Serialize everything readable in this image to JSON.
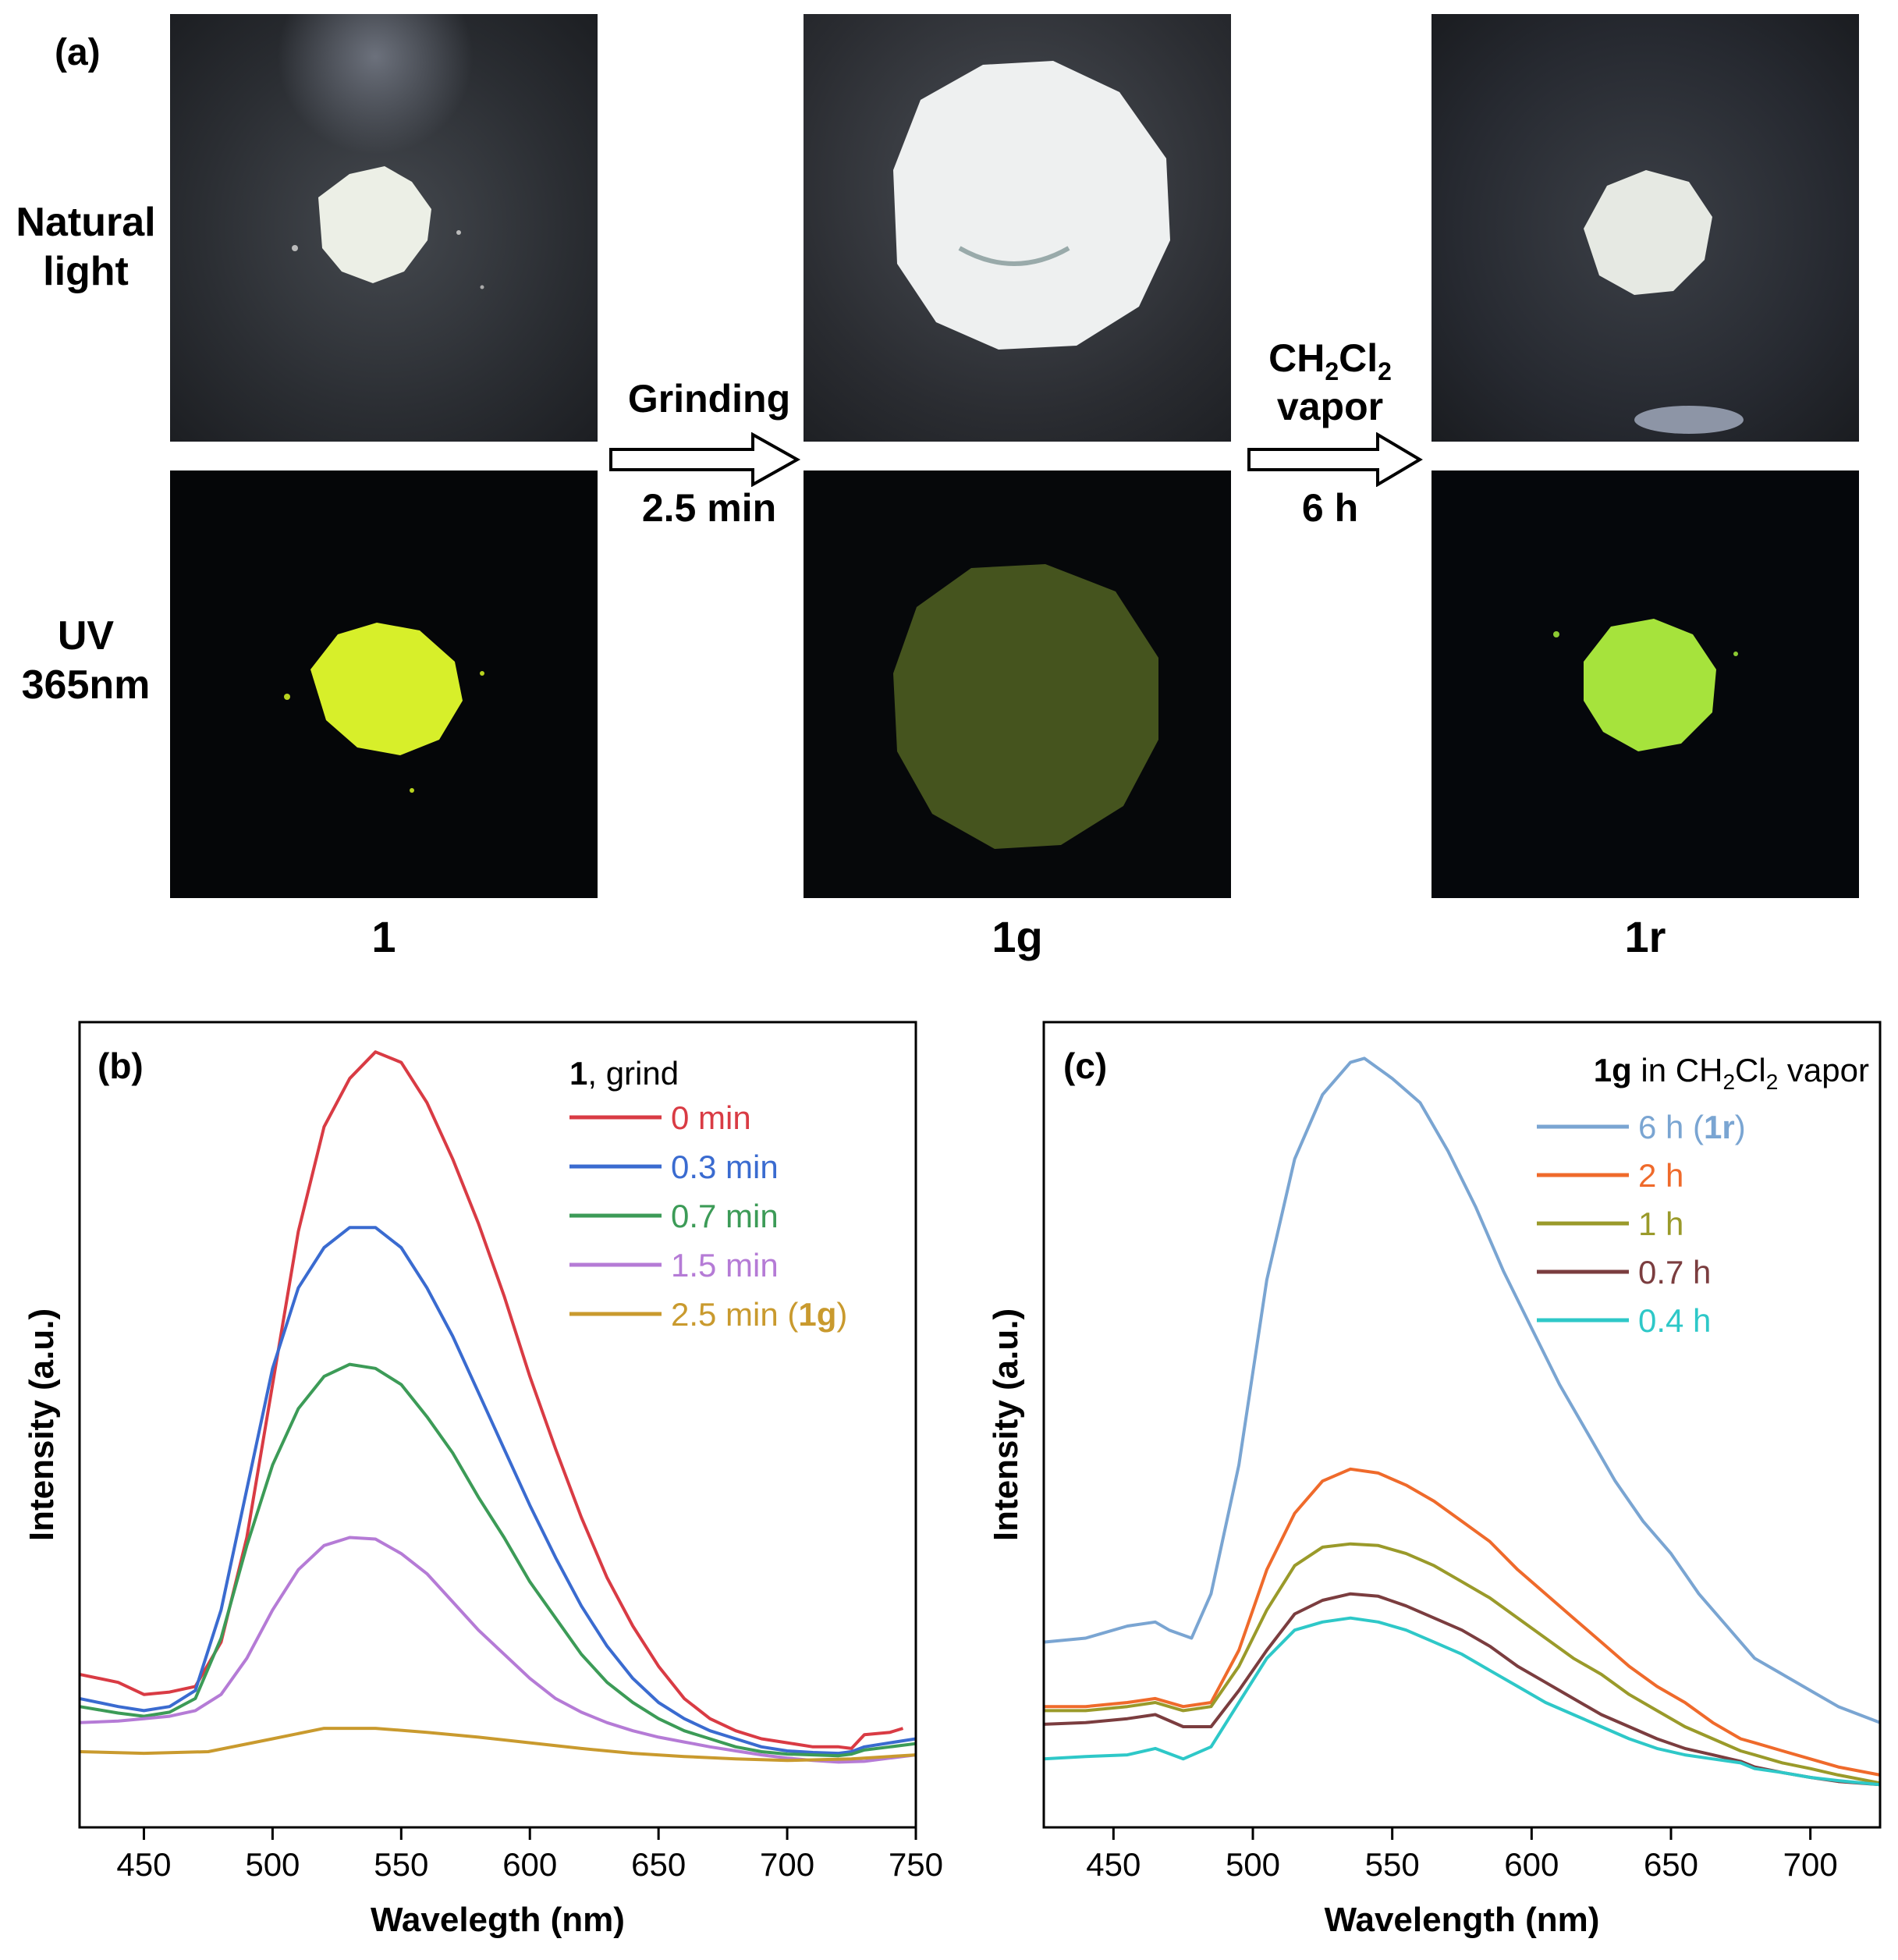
{
  "panel_a": {
    "label": "(a)",
    "row_labels": {
      "natural_line1": "Natural",
      "natural_line2": "light",
      "uv_line1": "UV",
      "uv_line2": "365nm"
    },
    "arrow1": {
      "top": "Grinding",
      "bottom": "2.5 min"
    },
    "arrow2": {
      "top_base": "CH",
      "top_sub1": "2",
      "top_mid": "Cl",
      "top_sub2": "2",
      "top_line2": "vapor",
      "bottom": "6 h"
    },
    "samples": [
      "1",
      "1g",
      "1r"
    ]
  },
  "chart_data": [
    {
      "type": "line",
      "panel_label": "(b)",
      "xlabel": "Wavelegth (nm)",
      "ylabel": "Intensity (a.u.)",
      "xlim": [
        425,
        750
      ],
      "ylim": [
        0,
        100
      ],
      "x_ticks": [
        450,
        500,
        550,
        600,
        650,
        700,
        750
      ],
      "legend_title_bold": "1",
      "legend_title_rest": ", grind",
      "legend_position": "top-right",
      "series": [
        {
          "name": "0 min",
          "name_bold": "",
          "name_tail": "",
          "color": "#d93b44",
          "x": [
            425,
            440,
            450,
            460,
            470,
            480,
            490,
            500,
            510,
            520,
            530,
            540,
            550,
            560,
            570,
            580,
            590,
            600,
            610,
            620,
            630,
            640,
            650,
            660,
            670,
            680,
            690,
            700,
            710,
            720,
            725,
            730,
            740,
            745
          ],
          "y": [
            19,
            18,
            16.5,
            16.8,
            17.5,
            23,
            36,
            55,
            74,
            87,
            93,
            96.3,
            95,
            90,
            83,
            75,
            66,
            56,
            47,
            38.5,
            31,
            25,
            20,
            16,
            13.5,
            12,
            11,
            10.5,
            10,
            10,
            9.8,
            11.5,
            11.8,
            12.3
          ]
        },
        {
          "name": "0.3 min",
          "name_bold": "",
          "name_tail": "",
          "color": "#3a6bd0",
          "x": [
            425,
            440,
            450,
            460,
            470,
            480,
            490,
            500,
            510,
            520,
            530,
            540,
            550,
            560,
            570,
            580,
            590,
            600,
            610,
            620,
            630,
            640,
            650,
            660,
            670,
            680,
            690,
            700,
            710,
            720,
            725,
            730,
            740,
            750
          ],
          "y": [
            16,
            15,
            14.5,
            15,
            17,
            27,
            42,
            57,
            67,
            72,
            74.5,
            74.5,
            72,
            67,
            61,
            54,
            47,
            40,
            33.5,
            27.5,
            22.5,
            18.5,
            15.5,
            13.5,
            12,
            11,
            10,
            9.5,
            9.3,
            9.2,
            9.4,
            10,
            10.5,
            11
          ]
        },
        {
          "name": "0.7 min",
          "name_bold": "",
          "name_tail": "",
          "color": "#3c9b57",
          "x": [
            425,
            440,
            450,
            460,
            470,
            480,
            490,
            500,
            510,
            520,
            530,
            540,
            550,
            560,
            570,
            580,
            590,
            600,
            610,
            620,
            630,
            640,
            650,
            660,
            670,
            680,
            690,
            700,
            710,
            720,
            725,
            730,
            740,
            750
          ],
          "y": [
            15,
            14.2,
            13.8,
            14.3,
            16,
            23.5,
            35,
            45,
            52,
            56,
            57.5,
            57,
            55,
            51,
            46.5,
            41,
            36,
            30.5,
            26,
            21.5,
            18,
            15.5,
            13.5,
            12,
            11,
            10,
            9.4,
            9.1,
            9,
            8.9,
            9.1,
            9.6,
            10,
            10.4
          ]
        },
        {
          "name": "1.5 min",
          "name_bold": "",
          "name_tail": "",
          "color": "#b57bd6",
          "x": [
            425,
            440,
            450,
            460,
            470,
            480,
            490,
            500,
            510,
            520,
            530,
            540,
            550,
            560,
            570,
            580,
            590,
            600,
            610,
            620,
            630,
            640,
            650,
            660,
            670,
            680,
            690,
            700,
            710,
            720,
            730,
            740,
            750
          ],
          "y": [
            13,
            13.2,
            13.5,
            13.8,
            14.5,
            16.5,
            21,
            27,
            32,
            35,
            36,
            35.8,
            34,
            31.5,
            28,
            24.5,
            21.5,
            18.5,
            16,
            14.3,
            13,
            12,
            11.2,
            10.6,
            10,
            9.5,
            9,
            8.6,
            8.3,
            8.1,
            8.2,
            8.6,
            9
          ]
        },
        {
          "name": "2.5 min (",
          "name_bold": "1g",
          "name_tail": ")",
          "color": "#c99a2e",
          "x": [
            425,
            450,
            475,
            500,
            520,
            540,
            560,
            580,
            600,
            620,
            640,
            660,
            680,
            700,
            725,
            750
          ],
          "y": [
            9.4,
            9.2,
            9.4,
            11,
            12.3,
            12.3,
            11.8,
            11.2,
            10.5,
            9.8,
            9.2,
            8.8,
            8.5,
            8.3,
            8.5,
            9
          ]
        }
      ]
    },
    {
      "type": "line",
      "panel_label": "(c)",
      "xlabel": "Wavelength (nm)",
      "ylabel": "Intensity (a.u.)",
      "xlim": [
        425,
        725
      ],
      "ylim": [
        0,
        100
      ],
      "x_ticks": [
        450,
        500,
        550,
        600,
        650,
        700
      ],
      "legend_title_bold": "1g",
      "legend_title_rest_1": " in CH",
      "legend_title_sub_1": "2",
      "legend_title_rest_2": "Cl",
      "legend_title_sub_2": "2",
      "legend_title_rest_3": " vapor",
      "legend_position": "top-right",
      "series": [
        {
          "name": "6 h (",
          "name_bold": "1r",
          "name_tail": ")",
          "color": "#7aa5d2",
          "x": [
            425,
            440,
            445,
            455,
            465,
            470,
            478,
            485,
            495,
            505,
            515,
            525,
            535,
            540,
            550,
            560,
            570,
            580,
            590,
            600,
            610,
            620,
            630,
            640,
            650,
            660,
            670,
            680,
            690,
            700,
            710,
            725
          ],
          "y": [
            23,
            23.5,
            24,
            25,
            25.5,
            24.5,
            23.5,
            29,
            45,
            68,
            83,
            91,
            95,
            95.5,
            93,
            90,
            84,
            77,
            69,
            62,
            55,
            49,
            43,
            38,
            34,
            29,
            25,
            21,
            19,
            17,
            15,
            13
          ]
        },
        {
          "name": "2 h",
          "name_bold": "",
          "name_tail": "",
          "color": "#ef6a2b",
          "x": [
            425,
            440,
            455,
            465,
            475,
            485,
            495,
            505,
            515,
            525,
            535,
            545,
            555,
            565,
            575,
            585,
            595,
            605,
            615,
            625,
            635,
            645,
            655,
            665,
            675,
            680,
            690,
            700,
            710,
            725
          ],
          "y": [
            15,
            15,
            15.5,
            16,
            15,
            15.5,
            22,
            32,
            39,
            43,
            44.5,
            44,
            42.5,
            40.5,
            38,
            35.5,
            32,
            29,
            26,
            23,
            20,
            17.5,
            15.5,
            13,
            11,
            10.5,
            9.5,
            8.5,
            7.5,
            6.5
          ]
        },
        {
          "name": "1 h",
          "name_bold": "",
          "name_tail": "",
          "color": "#9a9a2a",
          "x": [
            425,
            440,
            455,
            465,
            475,
            485,
            495,
            505,
            515,
            525,
            535,
            545,
            555,
            565,
            575,
            585,
            595,
            605,
            615,
            625,
            635,
            645,
            655,
            665,
            675,
            680,
            690,
            700,
            710,
            725
          ],
          "y": [
            14.5,
            14.5,
            15,
            15.5,
            14.5,
            15,
            20,
            27,
            32.5,
            34.8,
            35.2,
            35,
            34,
            32.5,
            30.5,
            28.5,
            26,
            23.5,
            21,
            19,
            16.5,
            14.5,
            12.5,
            11,
            9.5,
            9,
            8,
            7.3,
            6.5,
            5.5
          ]
        },
        {
          "name": "0.7 h",
          "name_bold": "",
          "name_tail": "",
          "color": "#7b3d3f",
          "x": [
            425,
            440,
            455,
            465,
            475,
            485,
            495,
            505,
            515,
            525,
            535,
            545,
            555,
            565,
            575,
            585,
            595,
            605,
            615,
            625,
            635,
            645,
            655,
            665,
            675,
            680,
            690,
            700,
            710,
            725
          ],
          "y": [
            12.8,
            13,
            13.5,
            14,
            12.5,
            12.5,
            17,
            22,
            26.5,
            28.2,
            29,
            28.7,
            27.5,
            26,
            24.5,
            22.5,
            20,
            18,
            16,
            14,
            12.5,
            11,
            9.8,
            9,
            8.2,
            7.5,
            6.8,
            6.2,
            5.7,
            5.3
          ]
        },
        {
          "name": "0.4 h",
          "name_bold": "",
          "name_tail": "",
          "color": "#2ec8c8",
          "x": [
            425,
            440,
            455,
            465,
            475,
            485,
            495,
            505,
            515,
            525,
            535,
            545,
            555,
            565,
            575,
            585,
            595,
            605,
            615,
            625,
            635,
            645,
            655,
            665,
            675,
            680,
            690,
            700,
            710,
            725
          ],
          "y": [
            8.5,
            8.8,
            9,
            9.8,
            8.5,
            10,
            15.5,
            21,
            24.5,
            25.5,
            26,
            25.5,
            24.5,
            23,
            21.5,
            19.5,
            17.5,
            15.5,
            14,
            12.5,
            11,
            9.8,
            9,
            8.5,
            8,
            7.3,
            6.8,
            6.2,
            5.8,
            5.3
          ]
        }
      ]
    }
  ]
}
